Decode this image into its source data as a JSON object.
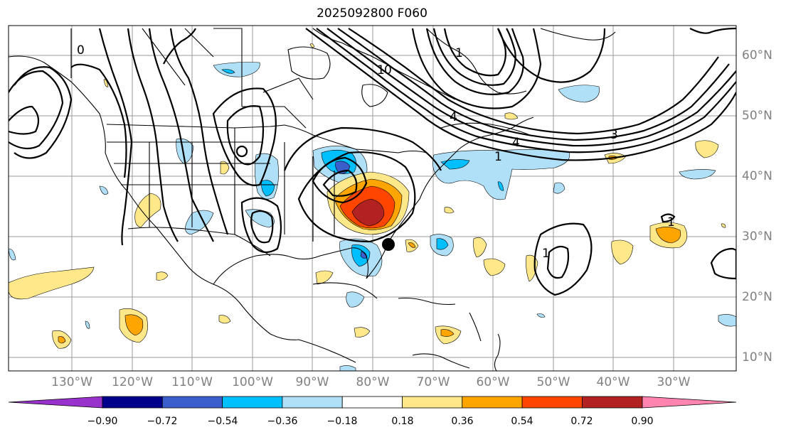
{
  "title": "2025092800 F060",
  "axes": {
    "lon_labels": [
      "130°W",
      "120°W",
      "110°W",
      "100°W",
      "90°W",
      "80°W",
      "70°W",
      "60°W",
      "50°W",
      "40°W",
      "30°W"
    ],
    "lat_labels": [
      "60°N",
      "50°N",
      "40°N",
      "30°N",
      "20°N",
      "10°N"
    ]
  },
  "colorbar": {
    "ticks": [
      "−0.90",
      "−0.72",
      "−0.54",
      "−0.36",
      "−0.18",
      "0.18",
      "0.36",
      "0.54",
      "0.72",
      "0.90"
    ],
    "colors": [
      "#9932cc",
      "#00008b",
      "#3a5fcd",
      "#00bfff",
      "#b0e0f7",
      "#ffffff",
      "#ffe88a",
      "#ffa500",
      "#ff4500",
      "#b22222",
      "#ff85b0"
    ]
  },
  "contour_labels": [
    "0",
    "4",
    "1",
    "3",
    "1",
    "4",
    "1",
    "1",
    "1",
    "0"
  ]
}
